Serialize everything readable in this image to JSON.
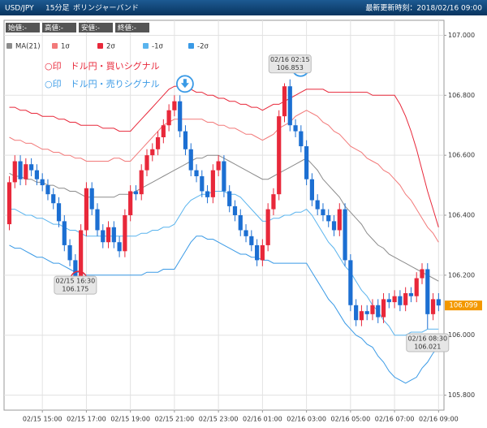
{
  "header": {
    "pair": "USD/JPY",
    "timeframe": "15分足",
    "indicator": "ボリンジャーバンド",
    "updated": "最新更新時刻：2018/02/16 09:00",
    "ohlc": [
      "始値:-",
      "高値:-",
      "安値:-",
      "終値:-"
    ]
  },
  "chart_data": {
    "type": "candlestick",
    "categories": [
      null,
      null,
      null,
      null,
      null,
      null,
      "02/15 15:00",
      null,
      null,
      null,
      null,
      null,
      null,
      null,
      "02/15 17:00",
      null,
      null,
      null,
      null,
      null,
      null,
      null,
      "02/15 19:00",
      null,
      null,
      null,
      null,
      null,
      null,
      null,
      "02/15 21:00",
      null,
      null,
      null,
      null,
      null,
      null,
      null,
      "02/15 23:00",
      null,
      null,
      null,
      null,
      null,
      null,
      null,
      "02/16 01:00",
      null,
      null,
      null,
      null,
      null,
      null,
      null,
      "02/16 03:00",
      null,
      null,
      null,
      null,
      null,
      null,
      null,
      "02/16 05:00",
      null,
      null,
      null,
      null,
      null,
      null,
      null,
      "02/16 07:00",
      null,
      null,
      null,
      null,
      null,
      null,
      null,
      "02/16 09:00"
    ],
    "open": [
      106.37,
      106.51,
      106.58,
      106.52,
      106.57,
      106.55,
      106.52,
      106.5,
      106.47,
      106.44,
      106.38,
      106.3,
      106.25,
      106.19,
      106.35,
      106.49,
      106.42,
      106.35,
      106.31,
      106.36,
      106.31,
      106.28,
      106.4,
      106.48,
      106.47,
      106.55,
      106.6,
      106.62,
      106.66,
      106.7,
      106.75,
      106.78,
      106.68,
      106.62,
      106.55,
      106.53,
      106.48,
      106.46,
      106.55,
      106.58,
      106.48,
      106.43,
      106.4,
      106.35,
      106.33,
      106.3,
      106.25,
      106.3,
      106.42,
      106.47,
      106.73,
      106.83,
      106.7,
      106.68,
      106.63,
      106.52,
      106.45,
      106.42,
      106.4,
      106.38,
      106.35,
      106.42,
      106.25,
      106.1,
      106.05,
      106.08,
      106.07,
      106.1,
      106.06,
      106.12,
      106.11,
      106.13,
      106.1,
      106.14,
      106.13,
      106.19,
      106.22,
      106.07,
      106.12
    ],
    "high": [
      106.53,
      106.6,
      106.6,
      106.59,
      106.59,
      106.57,
      106.54,
      106.52,
      106.49,
      106.46,
      106.4,
      106.32,
      106.27,
      106.37,
      106.51,
      106.51,
      106.44,
      106.37,
      106.38,
      106.38,
      106.33,
      106.42,
      106.5,
      106.5,
      106.57,
      106.62,
      106.64,
      106.68,
      106.72,
      106.77,
      106.8,
      106.8,
      106.7,
      106.64,
      106.57,
      106.55,
      106.5,
      106.57,
      106.6,
      106.6,
      106.5,
      106.45,
      106.42,
      106.37,
      106.35,
      106.32,
      106.32,
      106.44,
      106.49,
      106.75,
      106.84,
      106.853,
      106.72,
      106.7,
      106.65,
      106.54,
      106.47,
      106.44,
      106.42,
      106.4,
      106.44,
      106.44,
      106.27,
      106.12,
      106.1,
      106.1,
      106.12,
      106.12,
      106.14,
      106.14,
      106.15,
      106.15,
      106.16,
      106.16,
      106.21,
      106.24,
      106.24,
      106.14,
      106.14
    ],
    "low": [
      106.35,
      106.49,
      106.5,
      106.5,
      106.53,
      106.5,
      106.48,
      106.45,
      106.42,
      106.36,
      106.28,
      106.23,
      106.175,
      106.18,
      106.33,
      106.4,
      106.33,
      106.29,
      106.29,
      106.29,
      106.26,
      106.26,
      106.38,
      106.45,
      106.45,
      106.53,
      106.58,
      106.6,
      106.64,
      106.68,
      106.73,
      106.66,
      106.6,
      106.53,
      106.51,
      106.46,
      106.44,
      106.44,
      106.53,
      106.46,
      106.41,
      106.38,
      106.33,
      106.31,
      106.28,
      106.23,
      106.23,
      106.28,
      106.4,
      106.45,
      106.71,
      106.68,
      106.66,
      106.61,
      106.5,
      106.43,
      106.4,
      106.38,
      106.36,
      106.33,
      106.33,
      106.23,
      106.08,
      106.03,
      106.03,
      106.05,
      106.05,
      106.04,
      106.04,
      106.09,
      106.09,
      106.08,
      106.08,
      106.11,
      106.11,
      106.17,
      106.021,
      106.05,
      106.08
    ],
    "close": [
      106.51,
      106.58,
      106.52,
      106.57,
      106.55,
      106.52,
      106.5,
      106.47,
      106.44,
      106.38,
      106.3,
      106.25,
      106.19,
      106.35,
      106.49,
      106.42,
      106.35,
      106.31,
      106.36,
      106.31,
      106.28,
      106.4,
      106.48,
      106.47,
      106.55,
      106.6,
      106.62,
      106.66,
      106.7,
      106.75,
      106.78,
      106.68,
      106.62,
      106.55,
      106.53,
      106.48,
      106.46,
      106.55,
      106.58,
      106.48,
      106.43,
      106.4,
      106.35,
      106.33,
      106.3,
      106.25,
      106.3,
      106.42,
      106.47,
      106.73,
      106.83,
      106.7,
      106.68,
      106.63,
      106.52,
      106.45,
      106.42,
      106.4,
      106.38,
      106.35,
      106.42,
      106.25,
      106.1,
      106.05,
      106.08,
      106.07,
      106.1,
      106.06,
      106.12,
      106.11,
      106.13,
      106.1,
      106.14,
      106.13,
      106.19,
      106.22,
      106.07,
      106.12,
      106.099
    ],
    "up_color": "#e8283a",
    "down_color": "#1c6fd2",
    "series": [
      {
        "name": "MA(21)",
        "color": "#8c8c8c",
        "values": [
          106.54,
          106.53,
          106.53,
          106.52,
          106.52,
          106.51,
          106.51,
          106.5,
          106.5,
          106.49,
          106.49,
          106.48,
          106.48,
          106.47,
          106.46,
          106.46,
          106.46,
          106.46,
          106.46,
          106.46,
          106.47,
          106.47,
          106.47,
          106.48,
          106.49,
          106.5,
          106.51,
          106.52,
          106.53,
          106.54,
          106.55,
          106.56,
          106.57,
          106.58,
          106.59,
          106.59,
          106.6,
          106.6,
          106.6,
          106.59,
          106.58,
          106.57,
          106.56,
          106.55,
          106.54,
          106.53,
          106.52,
          106.52,
          106.53,
          106.54,
          106.55,
          106.56,
          106.57,
          106.58,
          106.59,
          106.57,
          106.55,
          106.52,
          106.5,
          106.48,
          106.46,
          106.43,
          106.41,
          106.39,
          106.37,
          106.34,
          106.32,
          106.3,
          106.29,
          106.27,
          106.26,
          106.25,
          106.24,
          106.23,
          106.22,
          106.21,
          106.2,
          106.19,
          106.18
        ]
      },
      {
        "name": "1σ",
        "color": "#f27a7a",
        "values": [
          106.66,
          106.65,
          106.65,
          106.64,
          106.64,
          106.63,
          106.62,
          106.62,
          106.61,
          106.61,
          106.6,
          106.6,
          106.59,
          106.59,
          106.58,
          106.58,
          106.58,
          106.58,
          106.58,
          106.59,
          106.59,
          106.58,
          106.58,
          106.6,
          106.62,
          106.64,
          106.66,
          106.68,
          106.7,
          106.71,
          106.72,
          106.72,
          106.72,
          106.72,
          106.72,
          106.72,
          106.71,
          106.71,
          106.7,
          106.7,
          106.69,
          106.69,
          106.68,
          106.67,
          106.67,
          106.66,
          106.65,
          106.66,
          106.67,
          106.69,
          106.7,
          106.71,
          106.73,
          106.74,
          106.75,
          106.74,
          106.73,
          106.71,
          106.7,
          106.68,
          106.67,
          106.65,
          106.63,
          106.62,
          106.61,
          106.59,
          106.58,
          106.57,
          106.55,
          106.54,
          106.52,
          106.5,
          106.47,
          106.45,
          106.42,
          106.39,
          106.36,
          106.34,
          106.31
        ]
      },
      {
        "name": "2σ",
        "color": "#e8283a",
        "values": [
          106.76,
          106.76,
          106.75,
          106.75,
          106.74,
          106.74,
          106.73,
          106.73,
          106.73,
          106.72,
          106.72,
          106.71,
          106.71,
          106.7,
          106.7,
          106.7,
          106.7,
          106.69,
          106.69,
          106.69,
          106.68,
          106.68,
          106.68,
          106.7,
          106.72,
          106.74,
          106.76,
          106.78,
          106.8,
          106.82,
          106.83,
          106.83,
          106.82,
          106.82,
          106.81,
          106.81,
          106.8,
          106.8,
          106.79,
          106.79,
          106.78,
          106.78,
          106.77,
          106.77,
          106.76,
          106.76,
          106.75,
          106.76,
          106.77,
          106.77,
          106.78,
          106.79,
          106.8,
          106.81,
          106.82,
          106.82,
          106.82,
          106.82,
          106.81,
          106.81,
          106.81,
          106.81,
          106.81,
          106.81,
          106.81,
          106.81,
          106.8,
          106.8,
          106.8,
          106.8,
          106.8,
          106.77,
          106.73,
          106.68,
          106.62,
          106.55,
          106.48,
          106.42,
          106.36
        ]
      },
      {
        "name": "-1σ",
        "color": "#5ab4ee",
        "values": [
          106.42,
          106.42,
          106.41,
          106.4,
          106.4,
          106.39,
          106.39,
          106.38,
          106.37,
          106.37,
          106.36,
          106.35,
          106.35,
          106.34,
          106.33,
          106.33,
          106.33,
          106.33,
          106.33,
          106.33,
          106.33,
          106.33,
          106.33,
          106.33,
          106.34,
          106.34,
          106.35,
          106.35,
          106.36,
          106.36,
          106.37,
          106.4,
          106.43,
          106.45,
          106.46,
          106.47,
          106.47,
          106.48,
          106.48,
          106.48,
          106.47,
          106.47,
          106.46,
          106.44,
          106.42,
          106.4,
          106.38,
          106.38,
          106.39,
          106.39,
          106.4,
          106.4,
          106.41,
          106.41,
          106.42,
          106.4,
          106.37,
          106.34,
          106.31,
          106.29,
          106.26,
          106.23,
          106.21,
          106.18,
          106.15,
          106.13,
          106.1,
          106.08,
          106.05,
          106.03,
          106.0,
          106.0,
          106.0,
          106.01,
          106.01,
          106.01,
          106.02,
          106.02,
          106.02
        ]
      },
      {
        "name": "-2σ",
        "color": "#3a9ae6",
        "values": [
          106.3,
          106.29,
          106.29,
          106.28,
          106.27,
          106.26,
          106.26,
          106.25,
          106.24,
          106.24,
          106.23,
          106.22,
          106.21,
          106.21,
          106.2,
          106.2,
          106.2,
          106.2,
          106.2,
          106.2,
          106.2,
          106.2,
          106.2,
          106.2,
          106.2,
          106.21,
          106.21,
          106.21,
          106.22,
          106.22,
          106.22,
          106.25,
          106.28,
          106.31,
          106.33,
          106.33,
          106.32,
          106.32,
          106.31,
          106.3,
          106.29,
          106.28,
          106.27,
          106.27,
          106.26,
          106.26,
          106.25,
          106.25,
          106.24,
          106.24,
          106.24,
          106.24,
          106.24,
          106.24,
          106.24,
          106.21,
          106.18,
          106.15,
          106.12,
          106.1,
          106.07,
          106.04,
          106.02,
          106.0,
          105.99,
          105.97,
          105.96,
          105.93,
          105.91,
          105.88,
          105.86,
          105.85,
          105.84,
          105.85,
          105.86,
          105.89,
          105.91,
          105.94,
          105.96
        ]
      }
    ],
    "ylim": [
      105.75,
      107.05
    ],
    "yticks": [
      {
        "value": 105.8,
        "label": "105.800"
      },
      {
        "value": 106,
        "label": "106.000"
      },
      {
        "value": 106.2,
        "label": "106.200"
      },
      {
        "value": 106.4,
        "label": "106.400"
      },
      {
        "value": 106.6,
        "label": "106.600"
      },
      {
        "value": 106.8,
        "label": "106.800"
      },
      {
        "value": 107,
        "label": "107.000"
      }
    ],
    "grid": true,
    "last": 106.099,
    "last_color": "#f39800",
    "callouts": [
      {
        "time": "02/15 16:30",
        "value": 106.175
      },
      {
        "time": "02/16 02:15",
        "value": 106.853
      },
      {
        "time": "02/16 08:30",
        "value": 106.021
      }
    ],
    "signals": [
      {
        "text": "○印　ドル円・買いシグナル",
        "color": "#e8283a"
      },
      {
        "text": "○印　ドル円・売りシグナル",
        "color": "#3a9ae6"
      }
    ]
  }
}
